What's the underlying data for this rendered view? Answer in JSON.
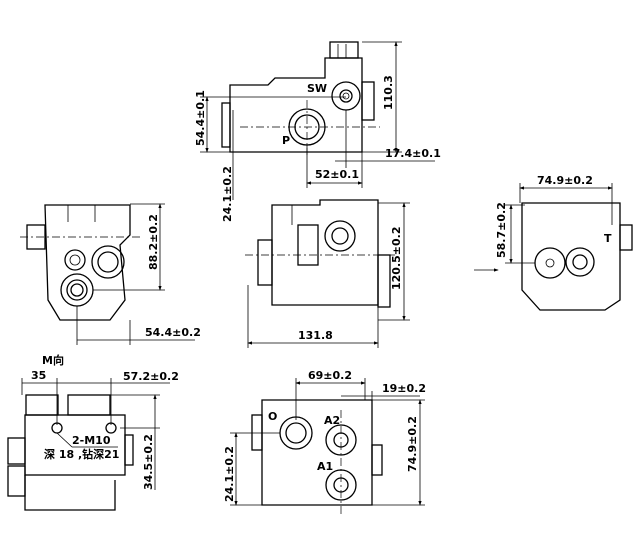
{
  "drawing": {
    "view_top": {
      "port_labels": {
        "sw": "SW",
        "p": "P"
      },
      "dims": {
        "height": "110.3",
        "port_height": "54.4±0.1",
        "offset": "24.1±0.2",
        "port_spacing": "52±0.1",
        "sw_offset": "17.4±0.1"
      }
    },
    "view_left": {
      "dims": {
        "height": "88.2±0.2",
        "width": "54.4±0.2"
      }
    },
    "view_front": {
      "dims": {
        "height": "120.5±0.2",
        "width": "131.8"
      }
    },
    "view_right": {
      "port_labels": {
        "t": "T"
      },
      "dims": {
        "width": "74.9±0.2",
        "height": "58.7±0.2"
      }
    },
    "view_m": {
      "title": "M向",
      "dims": {
        "left": "35",
        "spacing": "57.2±0.2",
        "height": "34.5±0.2"
      },
      "thread_note": "2-M10",
      "depth_note": "深 18 ,钻深21"
    },
    "view_bottom": {
      "port_labels": {
        "o": "O",
        "a2": "A2",
        "a1": "A1"
      },
      "dims": {
        "spacing": "69±0.2",
        "offset_right": "19±0.2",
        "height": "74.9±0.2",
        "offset": "24.1±0.2"
      }
    }
  }
}
